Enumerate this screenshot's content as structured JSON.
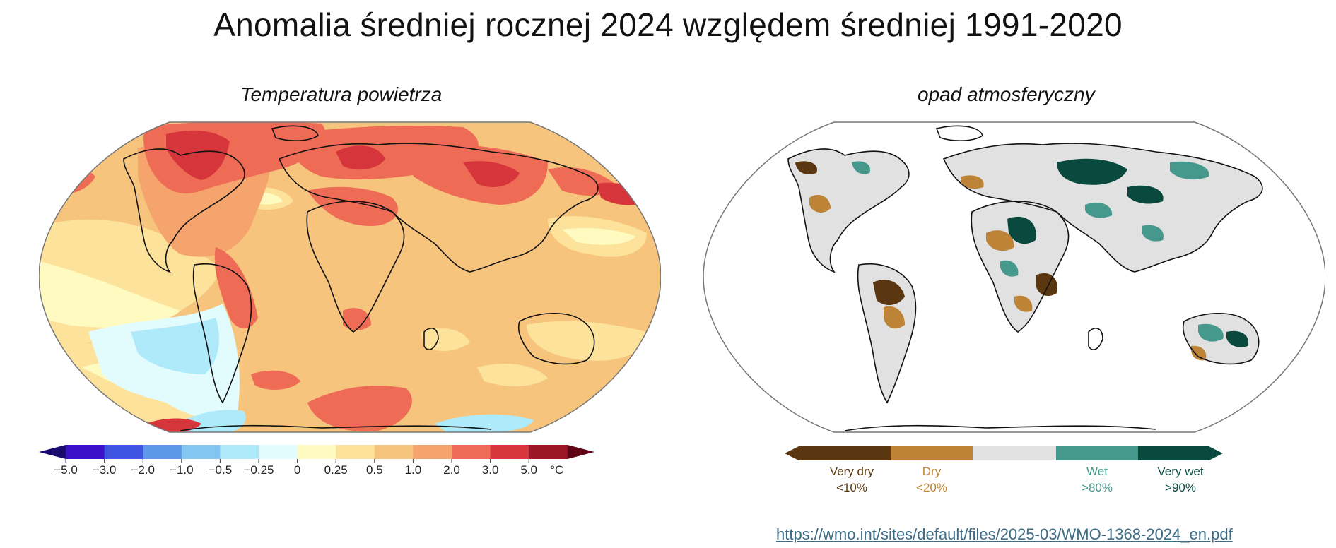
{
  "title": "Anomalia średniej rocznej 2024 względem średniej 1991-2020",
  "left_panel": {
    "subtitle": "Temperatura powietrza",
    "legend": {
      "colors": [
        "#1a0a70",
        "#3a11c8",
        "#3e54e0",
        "#5e96ea",
        "#84c6f2",
        "#aeeafa",
        "#e2fbfd",
        "#fffbc0",
        "#fce29b",
        "#f7c47d",
        "#f5a46d",
        "#ee6c55",
        "#d6363b",
        "#9b1727",
        "#5e0615"
      ],
      "ticks": [
        "−5.0",
        "−3.0",
        "−2.0",
        "−1.0",
        "−0.5",
        "−0.25",
        "0",
        "0.25",
        "0.5",
        "1.0",
        "2.0",
        "3.0",
        "5.0"
      ],
      "unit": "°C"
    }
  },
  "right_panel": {
    "subtitle": "opad atmosferyczny",
    "legend": {
      "colors": {
        "very_dry": "#5a3711",
        "dry": "#bd8437",
        "normal": "#e1e1e1",
        "wet": "#47988c",
        "very_wet": "#0a4a3e"
      },
      "labels": {
        "very_dry": {
          "name": "Very dry",
          "value": "<10%"
        },
        "dry": {
          "name": "Dry",
          "value": "<20%"
        },
        "wet": {
          "name": "Wet",
          "value": ">80%"
        },
        "very_wet": {
          "name": "Very wet",
          "value": ">90%"
        }
      }
    }
  },
  "source_link": "https://wmo.int/sites/default/files/2025-03/WMO-1368-2024_en.pdf"
}
